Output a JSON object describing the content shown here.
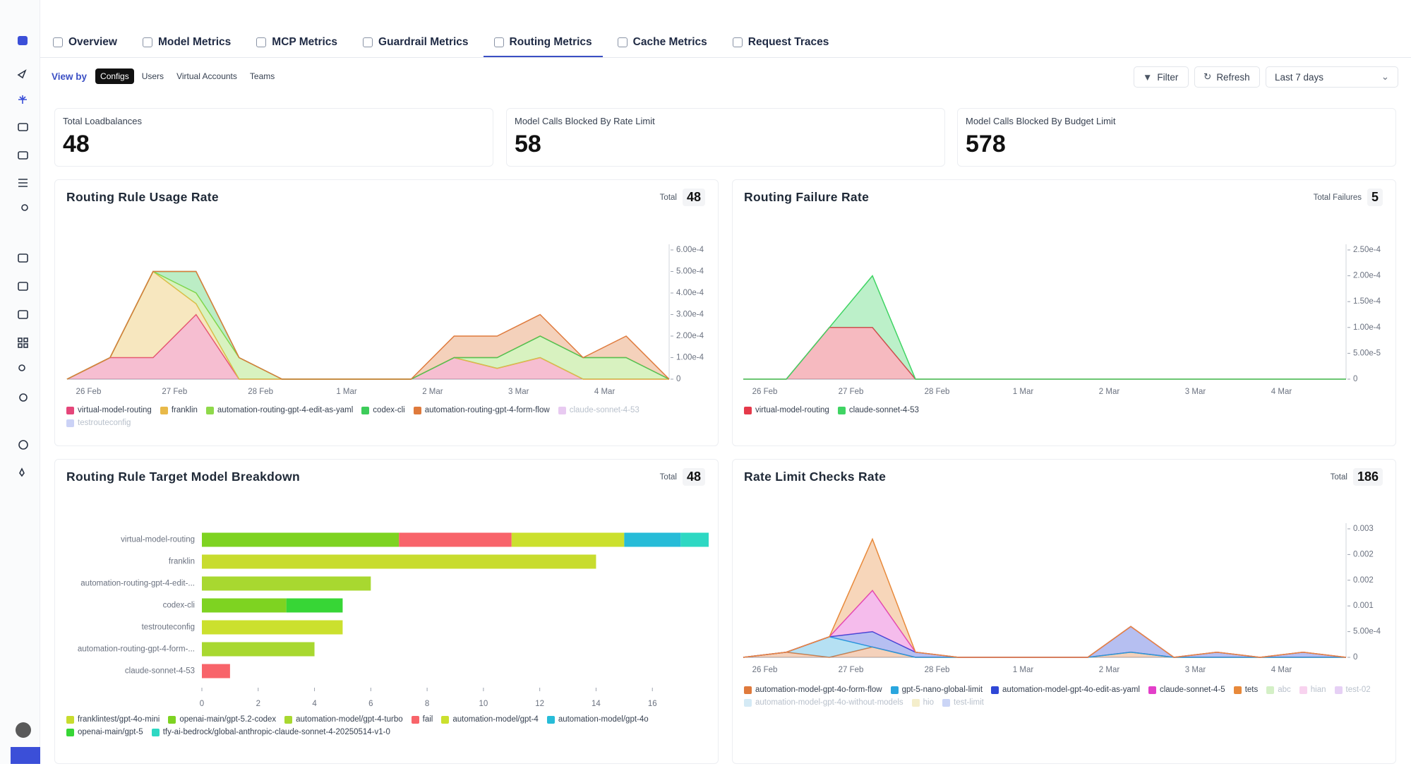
{
  "tabs": {
    "items": [
      "Overview",
      "Model Metrics",
      "MCP Metrics",
      "Guardrail Metrics",
      "Routing Metrics",
      "Cache Metrics",
      "Request Traces"
    ],
    "active": 4
  },
  "view_by": {
    "label": "View by",
    "options": [
      "Configs",
      "Users",
      "Virtual Accounts",
      "Teams"
    ],
    "active": 0
  },
  "toolbar": {
    "filter": "Filter",
    "refresh": "Refresh",
    "range": "Last 7 days"
  },
  "stats": [
    {
      "label": "Total Loadbalances",
      "value": 48
    },
    {
      "label": "Model Calls Blocked By Rate Limit",
      "value": 58
    },
    {
      "label": "Model Calls Blocked By Budget Limit",
      "value": 578
    }
  ],
  "charts": [
    {
      "type": "area",
      "stacked": true,
      "title": "Routing Rule Usage Rate",
      "total_label": "Total",
      "total": 48,
      "xlabels": [
        "26 Feb",
        "27 Feb",
        "28 Feb",
        "1 Mar",
        "2 Mar",
        "3 Mar",
        "4 Mar"
      ],
      "ylim": [
        0,
        0.0006
      ],
      "yticks": [
        0,
        {
          "value": 0.0001,
          "label": "1.00e-4"
        },
        {
          "value": 0.0002,
          "label": "2.00e-4"
        },
        {
          "value": 0.0003,
          "label": "3.00e-4"
        },
        {
          "value": 0.0004,
          "label": "4.00e-4"
        },
        {
          "value": 0.0005,
          "label": "5.00e-4"
        },
        {
          "value": 0.0006,
          "label": "6.00e-4"
        }
      ],
      "series": [
        {
          "name": "virtual-model-routing",
          "color": "#e5467a",
          "values": [
            0,
            0.0001,
            0.0001,
            0.0003,
            0,
            0,
            0,
            0,
            0,
            0.0001,
            5e-05,
            0.0001,
            0,
            0,
            0
          ]
        },
        {
          "name": "franklin",
          "color": "#e8b949",
          "values": [
            0,
            0,
            0.0004,
            5e-05,
            0,
            0,
            0,
            0,
            0,
            0,
            0,
            0,
            0,
            0,
            0
          ]
        },
        {
          "name": "automation-routing-gpt-4-edit-as-yaml",
          "color": "#8fd94a",
          "values": [
            0,
            0,
            0,
            5e-05,
            0.0001,
            0,
            0,
            0,
            0,
            0,
            5e-05,
            0.0001,
            0.0001,
            0.0001,
            0
          ]
        },
        {
          "name": "codex-cli",
          "color": "#3dcc5a",
          "values": [
            0,
            0,
            0,
            0.0001,
            0,
            0,
            0,
            0,
            0,
            0,
            0,
            0,
            0,
            0,
            0
          ]
        },
        {
          "name": "automation-routing-gpt-4-form-flow",
          "color": "#df7a3c",
          "values": [
            0,
            0,
            0,
            0,
            0,
            0,
            0,
            0,
            0,
            0.0001,
            0.0001,
            0.0001,
            0,
            0.0001,
            0
          ]
        },
        {
          "name": "claude-sonnet-4-53",
          "color": "#d9a6e8",
          "hidden": true
        },
        {
          "name": "testrouteconfig",
          "color": "#a9b4f0",
          "hidden": true
        }
      ]
    },
    {
      "type": "area",
      "stacked": true,
      "title": "Routing Failure Rate",
      "total_label": "Total Failures",
      "total": 5,
      "xlabels": [
        "26 Feb",
        "27 Feb",
        "28 Feb",
        "1 Mar",
        "2 Mar",
        "3 Mar",
        "4 Mar"
      ],
      "ylim": [
        0,
        0.00025
      ],
      "yticks": [
        0,
        {
          "value": 5e-05,
          "label": "5.00e-5"
        },
        {
          "value": 0.0001,
          "label": "1.00e-4"
        },
        {
          "value": 0.00015,
          "label": "1.50e-4"
        },
        {
          "value": 0.0002,
          "label": "2.00e-4"
        },
        {
          "value": 0.00025,
          "label": "2.50e-4"
        }
      ],
      "series": [
        {
          "name": "virtual-model-routing",
          "color": "#e5394a",
          "values": [
            0,
            0,
            0.0001,
            0.0001,
            0,
            0,
            0,
            0,
            0,
            0,
            0,
            0,
            0,
            0,
            0
          ]
        },
        {
          "name": "claude-sonnet-4-53",
          "color": "#3fd463",
          "values": [
            0,
            0,
            0,
            0.0001,
            0,
            0,
            0,
            0,
            0,
            0,
            0,
            0,
            0,
            0,
            0
          ]
        }
      ]
    },
    {
      "type": "hbar",
      "stacked": true,
      "title": "Routing Rule Target Model Breakdown",
      "total_label": "Total",
      "total": 48,
      "categories": [
        "virtual-model-routing",
        "franklin",
        "automation-routing-gpt-4-edit-...",
        "codex-cli",
        "testrouteconfig",
        "automation-routing-gpt-4-form-...",
        "claude-sonnet-4-53"
      ],
      "xlim": [
        0,
        18
      ],
      "xticks": [
        0,
        2,
        4,
        6,
        8,
        10,
        12,
        14,
        16
      ],
      "series": [
        {
          "name": "franklintest/gpt-4o-mini",
          "color": "#c8dc2e",
          "values": [
            null,
            14,
            null,
            null,
            null,
            null,
            null
          ]
        },
        {
          "name": "openai-main/gpt-5.2-codex",
          "color": "#7ed321",
          "values": [
            7,
            null,
            null,
            3,
            null,
            null,
            null
          ]
        },
        {
          "name": "automation-model/gpt-4-turbo",
          "color": "#a8d830",
          "values": [
            null,
            null,
            6,
            null,
            null,
            4,
            null
          ]
        },
        {
          "name": "fail",
          "color": "#f8646a",
          "values": [
            4,
            null,
            null,
            null,
            null,
            null,
            1
          ]
        },
        {
          "name": "automation-model/gpt-4",
          "color": "#cbe02e",
          "values": [
            4,
            null,
            null,
            null,
            5,
            null,
            null
          ]
        },
        {
          "name": "automation-model/gpt-4o",
          "color": "#27bcd8",
          "values": [
            2,
            null,
            null,
            null,
            null,
            null,
            null
          ]
        },
        {
          "name": "openai-main/gpt-5",
          "color": "#37d636",
          "values": [
            null,
            null,
            null,
            2,
            null,
            null,
            null
          ]
        },
        {
          "name": "tfy-ai-bedrock/global-anthropic-claude-sonnet-4-20250514-v1-0",
          "color": "#2ed8c3",
          "values": [
            1,
            null,
            null,
            null,
            null,
            null,
            null
          ]
        }
      ]
    },
    {
      "type": "area",
      "stacked": true,
      "title": "Rate Limit Checks Rate",
      "total_label": "Total",
      "total": 186,
      "xlabels": [
        "26 Feb",
        "27 Feb",
        "28 Feb",
        "1 Mar",
        "2 Mar",
        "3 Mar",
        "4 Mar"
      ],
      "ylim": [
        0,
        0.0025
      ],
      "yticks": [
        0,
        {
          "value": 0.0005,
          "label": "5.00e-4"
        },
        0.001,
        {
          "value": 0.0015,
          "label": "0.002"
        },
        0.002,
        {
          "value": 0.0025,
          "label": "0.003"
        }
      ],
      "series": [
        {
          "name": "automation-model-gpt-4o-form-flow",
          "color": "#df7a3c",
          "values": [
            0,
            0.0001,
            0,
            0.0002,
            0,
            0,
            0,
            0,
            0,
            0.0001,
            0,
            0,
            0,
            0,
            0
          ]
        },
        {
          "name": "gpt-5-nano-global-limit",
          "color": "#2aa6de",
          "values": [
            0,
            0,
            0.0004,
            0,
            0,
            0,
            0,
            0,
            0,
            0,
            0,
            0,
            0,
            0,
            0
          ]
        },
        {
          "name": "automation-model-gpt-4o-edit-as-yaml",
          "color": "#2f47d6",
          "values": [
            0,
            0,
            0,
            0.0003,
            0.0001,
            0,
            0,
            0,
            0,
            0.0005,
            0,
            0.0001,
            0,
            0.0001,
            0
          ]
        },
        {
          "name": "claude-sonnet-4-5",
          "color": "#e33fc9",
          "values": [
            0,
            0,
            0,
            0.0008,
            0,
            0,
            0,
            0,
            0,
            0,
            0,
            0,
            0,
            0,
            0
          ]
        },
        {
          "name": "tets",
          "color": "#e8893a",
          "values": [
            0,
            0,
            0,
            0.001,
            0,
            0,
            0,
            0,
            0,
            0,
            0,
            0,
            0,
            0,
            0
          ]
        },
        {
          "name": "abc",
          "color": "#b7e6a0",
          "hidden": true
        },
        {
          "name": "hian",
          "color": "#f4b6e4",
          "hidden": true
        },
        {
          "name": "test-02",
          "color": "#d6b0ee",
          "hidden": true
        },
        {
          "name": "automation-model-gpt-4o-without-models",
          "color": "#b7dcef",
          "hidden": true
        },
        {
          "name": "hio",
          "color": "#ece3a8",
          "hidden": true
        },
        {
          "name": "test-limit",
          "color": "#a9b9f0",
          "hidden": true
        }
      ]
    }
  ]
}
